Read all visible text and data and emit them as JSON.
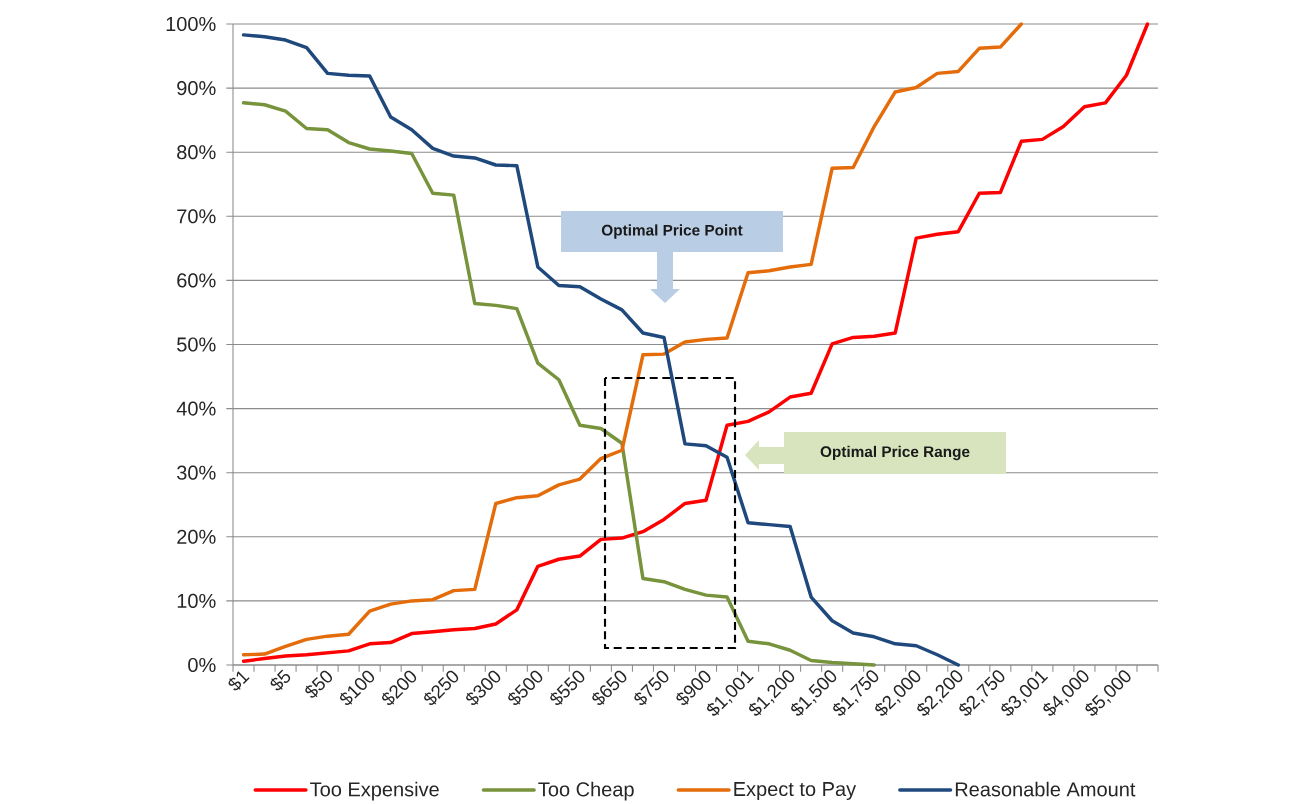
{
  "chart_data": {
    "type": "line",
    "categories": [
      "$1",
      null,
      "$5",
      null,
      "$50",
      null,
      "$100",
      null,
      "$200",
      null,
      "$250",
      null,
      "$300",
      null,
      "$500",
      null,
      "$550",
      null,
      "$650",
      null,
      "$750",
      null,
      "$900",
      null,
      "$1,001",
      null,
      "$1,200",
      null,
      "$1,500",
      null,
      "$1,750",
      null,
      "$2,000",
      null,
      "$2,200",
      null,
      "$2,750",
      null,
      "$3,001",
      null,
      "$4,000",
      null,
      "$5,000",
      null
    ],
    "series": [
      {
        "name": "Too Expensive",
        "color": "#ff0000",
        "values": [
          0.6,
          1.0,
          1.4,
          1.6,
          1.9,
          2.2,
          3.3,
          3.5,
          4.9,
          5.2,
          5.5,
          5.7,
          6.4,
          8.6,
          15.4,
          16.5,
          17.0,
          19.6,
          19.8,
          20.8,
          22.7,
          25.2,
          25.7,
          37.4,
          38.0,
          39.5,
          41.8,
          42.4,
          50.1,
          51.1,
          51.3,
          51.8,
          66.6,
          67.2,
          67.6,
          73.6,
          73.7,
          81.7,
          82.0,
          84.0,
          87.1,
          87.7,
          92.0,
          100
        ]
      },
      {
        "name": "Too Cheap",
        "color": "#77933c",
        "values": [
          87.7,
          87.4,
          86.4,
          83.7,
          83.5,
          81.5,
          80.5,
          80.2,
          79.8,
          73.6,
          73.3,
          56.4,
          56.1,
          55.6,
          47.1,
          44.5,
          37.4,
          36.9,
          34.6,
          13.5,
          13.0,
          11.8,
          10.9,
          10.6,
          3.7,
          3.3,
          2.3,
          0.7,
          0.4,
          0.2,
          0,
          null,
          null,
          null,
          null,
          null,
          null,
          null,
          null,
          null,
          null,
          null,
          null,
          null
        ]
      },
      {
        "name": "Expect to Pay",
        "color": "#e46c0a",
        "values": [
          1.6,
          1.7,
          2.9,
          4.0,
          4.5,
          4.8,
          8.4,
          9.5,
          10.0,
          10.2,
          11.6,
          11.8,
          25.2,
          26.1,
          26.4,
          28.1,
          29.0,
          32.2,
          33.5,
          48.4,
          48.5,
          50.4,
          50.8,
          51.0,
          61.2,
          61.5,
          62.1,
          62.5,
          77.5,
          77.6,
          84.0,
          89.4,
          90.1,
          92.3,
          92.6,
          96.2,
          96.4,
          100,
          null,
          null,
          null,
          null,
          null,
          null
        ]
      },
      {
        "name": "Reasonable Amount",
        "color": "#1f497d",
        "values": [
          98.3,
          98.0,
          97.5,
          96.3,
          92.3,
          92.0,
          91.9,
          85.5,
          83.5,
          80.6,
          79.4,
          79.1,
          78.0,
          77.9,
          62.1,
          59.2,
          59.0,
          57.1,
          55.4,
          51.8,
          51.1,
          34.5,
          34.2,
          32.4,
          22.2,
          21.9,
          21.6,
          10.6,
          6.9,
          5.0,
          4.4,
          3.3,
          3.0,
          1.6,
          0,
          null,
          null,
          null,
          null,
          null,
          null,
          null,
          null,
          null
        ]
      }
    ],
    "ylim": [
      0,
      100
    ],
    "yticks": [
      {
        "value": 0,
        "label": "0%"
      },
      {
        "value": 10,
        "label": "10%"
      },
      {
        "value": 20,
        "label": "20%"
      },
      {
        "value": 30,
        "label": "30%"
      },
      {
        "value": 40,
        "label": "40%"
      },
      {
        "value": 50,
        "label": "50%"
      },
      {
        "value": 60,
        "label": "60%"
      },
      {
        "value": 70,
        "label": "70%"
      },
      {
        "value": 80,
        "label": "80%"
      },
      {
        "value": 90,
        "label": "90%"
      },
      {
        "value": 100,
        "label": "100%"
      }
    ],
    "grid": "y",
    "legend": "bottom",
    "annotations": [
      "Optimal Price Point",
      "Optimal Price Range"
    ]
  }
}
